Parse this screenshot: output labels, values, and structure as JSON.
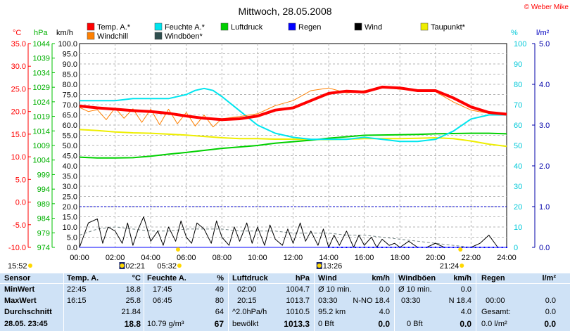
{
  "copyright": "© Weber Mike",
  "chart_data": {
    "type": "line",
    "title": "Mittwoch, 28.05.2008",
    "legend": [
      {
        "label": "Temp. A.*",
        "color": "#ff0000"
      },
      {
        "label": "Feuchte A.*",
        "color": "#00e5ee"
      },
      {
        "label": "Luftdruck",
        "color": "#00d000"
      },
      {
        "label": "Regen",
        "color": "#0000ff"
      },
      {
        "label": "Wind",
        "color": "#000000"
      },
      {
        "label": "Taupunkt*",
        "color": "#eeee00"
      },
      {
        "label": "Windchill",
        "color": "#ff8000"
      },
      {
        "label": "Windböen*",
        "color": "#2f4f4f"
      }
    ],
    "axes": {
      "temp": {
        "unit": "°C",
        "min": -10,
        "max": 35,
        "ticks": [
          "35.0",
          "30.0",
          "25.0",
          "20.0",
          "15.0",
          "10.0",
          "5.0",
          "0.0",
          "-5.0",
          "-10.0"
        ]
      },
      "pressure": {
        "unit": "hPa",
        "min": 974,
        "max": 1044,
        "ticks": [
          "1044",
          "1039",
          "1034",
          "1029",
          "1024",
          "1019",
          "1014",
          "1009",
          "1004",
          "999",
          "994",
          "989",
          "984",
          "979",
          "974"
        ]
      },
      "wind": {
        "unit": "km/h",
        "min": 0,
        "max": 100,
        "ticks": [
          "100.0",
          "95.0",
          "90.0",
          "85.0",
          "80.0",
          "75.0",
          "70.0",
          "65.0",
          "60.0",
          "55.0",
          "50.0",
          "45.0",
          "40.0",
          "35.0",
          "30.0",
          "25.0",
          "20.0",
          "15.0",
          "10.0",
          "5.0",
          "0.0"
        ]
      },
      "humidity": {
        "unit": "%",
        "min": 0,
        "max": 100,
        "ticks": [
          "100",
          "90",
          "80",
          "70",
          "60",
          "50",
          "40",
          "30",
          "20",
          "10",
          "0"
        ]
      },
      "rain": {
        "unit": "l/m²",
        "min": 0,
        "max": 5,
        "ticks": [
          "5.0",
          "4.0",
          "3.0",
          "2.0",
          "1.0",
          "0.0"
        ]
      }
    },
    "x_ticks": [
      "00:00",
      "02:00",
      "04:00",
      "06:00",
      "08:00",
      "10:00",
      "12:00",
      "14:00",
      "16:00",
      "18:00",
      "20:00",
      "22:00",
      "24:00"
    ],
    "series": [
      {
        "name": "Temp. A.*",
        "unit": "°C",
        "x": [
          0,
          1,
          2,
          3,
          4,
          5,
          6,
          7,
          8,
          9,
          10,
          11,
          12,
          13,
          14,
          15,
          16,
          17,
          18,
          19,
          20,
          21,
          22,
          23,
          24
        ],
        "values": [
          21.2,
          20.8,
          20.5,
          20.2,
          20.0,
          19.6,
          19.0,
          18.5,
          18.2,
          18.4,
          19.0,
          20.3,
          20.8,
          22.4,
          24.0,
          24.5,
          24.3,
          25.4,
          25.2,
          24.6,
          24.6,
          23.0,
          21.0,
          19.8,
          19.4
        ]
      },
      {
        "name": "Windchill",
        "unit": "°C",
        "x": [
          0,
          0.5,
          1,
          1.5,
          2,
          2.5,
          3,
          3.5,
          4,
          4.5,
          5,
          5.5,
          6,
          6.5,
          7,
          7.5,
          8,
          9,
          10,
          11,
          12,
          13,
          14,
          15,
          16,
          17,
          18,
          19,
          20,
          21,
          22,
          23,
          24
        ],
        "values": [
          20.9,
          20.0,
          20.4,
          18.2,
          20.8,
          18.5,
          20.6,
          17.6,
          20.5,
          17.1,
          20.5,
          17.3,
          19.8,
          16.8,
          19.2,
          16.6,
          18.4,
          18.9,
          19.5,
          21.3,
          22.4,
          24.6,
          25.2,
          24.1,
          24.6,
          25.4,
          24.9,
          24.8,
          24.4,
          22.1,
          20.3,
          19.6,
          19.3
        ]
      },
      {
        "name": "Feuchte A.*",
        "unit": "%",
        "x": [
          0,
          1,
          2,
          3,
          4,
          5,
          6,
          6.5,
          7,
          7.5,
          8,
          9,
          10,
          11,
          12,
          13,
          14,
          15,
          16,
          17,
          18,
          19,
          20,
          21,
          22,
          23,
          24
        ],
        "values": [
          72,
          72,
          72,
          73,
          73,
          73,
          75,
          77,
          78,
          77,
          74,
          67,
          60,
          56,
          54,
          53,
          53,
          53,
          54,
          53,
          52,
          52,
          53,
          57,
          63,
          65,
          65
        ]
      },
      {
        "name": "Luftdruck",
        "unit": "hPa",
        "x": [
          0,
          1,
          2,
          3,
          4,
          5,
          6,
          7,
          8,
          9,
          10,
          11,
          12,
          13,
          14,
          15,
          16,
          17,
          18,
          19,
          20,
          21,
          22,
          23,
          24
        ],
        "values": [
          1005.0,
          1004.7,
          1004.7,
          1004.8,
          1005.3,
          1006.0,
          1006.6,
          1007.3,
          1008.0,
          1008.5,
          1009.0,
          1009.8,
          1010.3,
          1010.8,
          1011.5,
          1012.0,
          1012.5,
          1012.6,
          1012.7,
          1012.8,
          1013.0,
          1013.1,
          1013.2,
          1013.2,
          1013.0
        ]
      },
      {
        "name": "Taupunkt*",
        "unit": "°C",
        "x": [
          0,
          1,
          2,
          3,
          4,
          5,
          6,
          7,
          8,
          9,
          10,
          11,
          12,
          13,
          14,
          15,
          16,
          17,
          18,
          19,
          20,
          21,
          22,
          23,
          24
        ],
        "values": [
          16.0,
          15.8,
          15.5,
          15.3,
          15.2,
          15.0,
          14.8,
          14.5,
          14.2,
          14.0,
          14.0,
          13.9,
          13.9,
          13.8,
          13.8,
          13.9,
          14.0,
          14.0,
          14.0,
          14.1,
          14.2,
          14.0,
          13.5,
          12.8,
          12.3
        ]
      },
      {
        "name": "Wind",
        "unit": "km/h",
        "x": [
          0,
          0.5,
          1,
          1.3,
          1.6,
          2,
          2.4,
          2.7,
          3,
          3.3,
          3.6,
          4,
          4.4,
          4.7,
          5,
          5.4,
          5.7,
          6,
          6.3,
          6.6,
          7,
          7.4,
          7.7,
          8,
          8.4,
          8.7,
          9,
          9.4,
          9.7,
          10,
          10.4,
          10.7,
          11,
          11.4,
          11.7,
          12,
          12.4,
          12.7,
          13,
          13.4,
          13.7,
          14,
          14.3,
          14.6,
          15,
          15.4,
          15.7,
          16,
          16.4,
          16.7,
          17,
          17.4,
          17.7,
          18,
          18.5,
          19,
          19.5,
          20,
          20.5,
          21,
          21.5,
          22,
          22.5,
          23,
          23.5,
          24
        ],
        "values": [
          0,
          12,
          14,
          2,
          10,
          8,
          2,
          12,
          1,
          9,
          15,
          3,
          8,
          1,
          10,
          3,
          13,
          5,
          2,
          12,
          9,
          2,
          13,
          5,
          1,
          10,
          3,
          12,
          2,
          10,
          1,
          11,
          4,
          1,
          9,
          2,
          12,
          3,
          8,
          1,
          9,
          0,
          6,
          1,
          8,
          0,
          6,
          1,
          5,
          0,
          4,
          1,
          2,
          0,
          3,
          0,
          0,
          2,
          0,
          0,
          0,
          0,
          2,
          6,
          0,
          0
        ]
      },
      {
        "name": "Windböen*",
        "unit": "km/h",
        "x": [
          0,
          1,
          2,
          3,
          4,
          5,
          6,
          7,
          8,
          9,
          10,
          11,
          12,
          13,
          14,
          15,
          16,
          17,
          18,
          19,
          20,
          21,
          22,
          23,
          24
        ],
        "values": [
          6,
          9,
          10,
          9,
          8,
          8,
          9,
          9,
          9,
          8,
          8,
          8,
          7,
          7,
          7,
          6,
          6,
          5,
          4,
          3,
          2,
          1,
          0,
          0,
          0
        ]
      },
      {
        "name": "Regen",
        "unit": "l/m²",
        "x": [
          0,
          14,
          16,
          18,
          20,
          22,
          24
        ],
        "values": [
          0,
          0,
          0,
          0,
          0,
          0,
          0
        ]
      }
    ],
    "rain_ref_line": 1.0,
    "markers": {
      "sunrise": {
        "hour": 5.533,
        "label": "05:32"
      },
      "sunset": {
        "hour": 21.4,
        "label": "21:24"
      },
      "moonrise": {
        "hour": 2.35,
        "label": "02:21"
      },
      "moonset": {
        "hour": 13.433,
        "label": "13:26"
      },
      "left_time": "15:52"
    },
    "grid": true
  },
  "stats": {
    "sensor": {
      "title": "Sensor",
      "minwert": "MinWert",
      "maxwert": "MaxWert",
      "durchschnitt": "Durchschnitt",
      "current": "28.05. 23:45"
    },
    "temp": {
      "title": "Temp. A.",
      "unit": "°C",
      "min_time": "22:45",
      "min_value": "18.8",
      "max_time": "16:15",
      "max_value": "25.8",
      "avg_value": "21.84",
      "current_value": "18.8"
    },
    "feuchte": {
      "title": "Feuchte A.",
      "unit": "%",
      "min_time": "17:45",
      "min_value": "49",
      "max_time": "06:45",
      "max_value": "80",
      "avg_value": "64",
      "current_extra": "10.79 g/m³",
      "current_value": "67"
    },
    "luftdruck": {
      "title": "Luftdruck",
      "unit": "hPa",
      "min_time": "02:00",
      "min_value": "1004.7",
      "max_time": "20:15",
      "max_value": "1013.7",
      "avg_label": "^2.0hPa/h",
      "avg_value": "1010.5",
      "current_label": "bewölkt",
      "current_value": "1013.3"
    },
    "wind": {
      "title": "Wind",
      "unit": "km/h",
      "row1_label": "Ø 10 min.",
      "row1_value": "0.0",
      "row2_label": "03:30",
      "row2_dir": "N-NO 18.4",
      "row3_label": "95.2 km",
      "row3_value": "4.0",
      "row4_label": "0 Bft",
      "row4_value": "0.0"
    },
    "windboeen": {
      "title": "Windböen",
      "unit": "km/h",
      "row1_label": "Ø 10 min.",
      "row1_value": "0.0",
      "row2_label": "03:30",
      "row2_dir": "N 18.4",
      "row3_value": "4.0",
      "row4_label": "0 Bft",
      "row4_value": "0.0"
    },
    "regen": {
      "title": "Regen",
      "unit": "l/m²",
      "row2_label": "00:00",
      "row2_value": "0.0",
      "row3_label": "Gesamt:",
      "row3_value": "0.0",
      "row4_label": "0.0 l/m²",
      "row4_value": "0.0"
    }
  }
}
